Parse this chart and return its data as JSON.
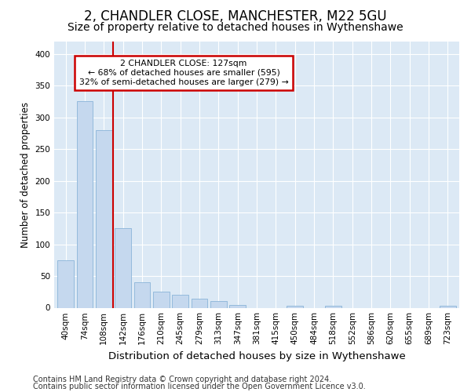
{
  "title1": "2, CHANDLER CLOSE, MANCHESTER, M22 5GU",
  "title2": "Size of property relative to detached houses in Wythenshawe",
  "xlabel": "Distribution of detached houses by size in Wythenshawe",
  "ylabel": "Number of detached properties",
  "categories": [
    "40sqm",
    "74sqm",
    "108sqm",
    "142sqm",
    "176sqm",
    "210sqm",
    "245sqm",
    "279sqm",
    "313sqm",
    "347sqm",
    "381sqm",
    "415sqm",
    "450sqm",
    "484sqm",
    "518sqm",
    "552sqm",
    "586sqm",
    "620sqm",
    "655sqm",
    "689sqm",
    "723sqm"
  ],
  "values": [
    75,
    325,
    280,
    125,
    40,
    25,
    20,
    14,
    10,
    4,
    0,
    0,
    3,
    0,
    3,
    0,
    0,
    0,
    0,
    0,
    3
  ],
  "bar_color": "#c5d8ee",
  "bar_edge_color": "#8ab4d8",
  "vline_color": "#cc0000",
  "property_label": "2 CHANDLER CLOSE: 127sqm",
  "annotation_line1": "← 68% of detached houses are smaller (595)",
  "annotation_line2": "32% of semi-detached houses are larger (279) →",
  "annotation_box_color": "#ffffff",
  "annotation_border_color": "#cc0000",
  "ylim": [
    0,
    420
  ],
  "yticks": [
    0,
    50,
    100,
    150,
    200,
    250,
    300,
    350,
    400
  ],
  "fig_background": "#ffffff",
  "plot_background": "#dce9f5",
  "grid_color": "#ffffff",
  "footer1": "Contains HM Land Registry data © Crown copyright and database right 2024.",
  "footer2": "Contains public sector information licensed under the Open Government Licence v3.0.",
  "title1_fontsize": 12,
  "title2_fontsize": 10,
  "xlabel_fontsize": 9.5,
  "ylabel_fontsize": 8.5,
  "tick_fontsize": 7.5,
  "footer_fontsize": 7.0,
  "vline_bar_index": 3
}
